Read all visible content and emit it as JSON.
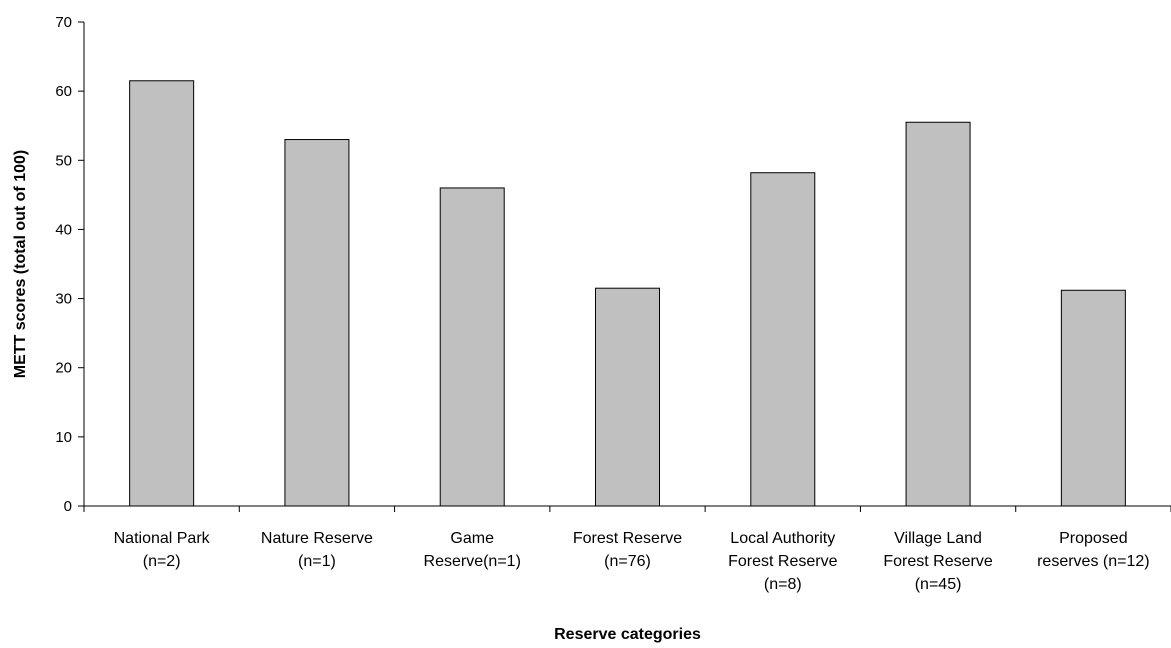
{
  "chart_data": {
    "type": "bar",
    "title": "",
    "xlabel": "Reserve categories",
    "ylabel": "METT scores (total out of 100)",
    "ylim": [
      0,
      70
    ],
    "yticks": [
      0,
      10,
      20,
      30,
      40,
      50,
      60,
      70
    ],
    "grid": false,
    "legend": "none",
    "bar_color": "#c0c0c0",
    "bar_edge_color": "#000000",
    "categories": [
      [
        "National Park",
        "(n=2)"
      ],
      [
        "Nature Reserve",
        "(n=1)"
      ],
      [
        "Game",
        "Reserve(n=1)"
      ],
      [
        "Forest Reserve",
        "(n=76)"
      ],
      [
        "Local Authority",
        "Forest Reserve",
        "(n=8)"
      ],
      [
        "Village Land",
        "Forest Reserve",
        "(n=45)"
      ],
      [
        "Proposed",
        "reserves (n=12)"
      ]
    ],
    "values": [
      61.5,
      53,
      46,
      31.5,
      48.2,
      55.5,
      31.2
    ]
  }
}
